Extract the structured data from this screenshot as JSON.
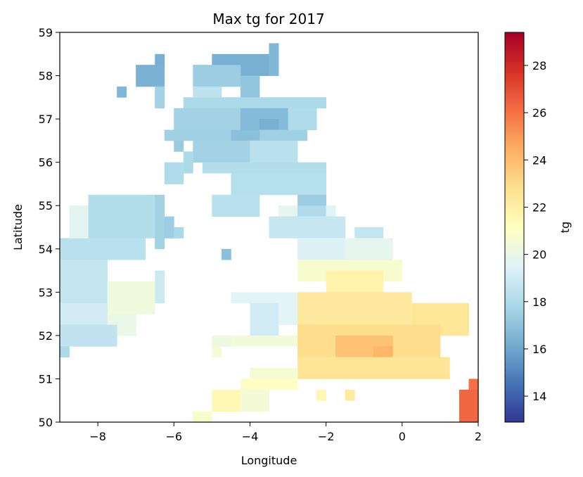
{
  "chart_data": {
    "type": "heatmap",
    "title": "Max tg for 2017",
    "xlabel": "Longitude",
    "ylabel": "Latitude",
    "xlim": [
      -9,
      2
    ],
    "ylim": [
      50,
      59
    ],
    "xticks": [
      "−8",
      "−6",
      "−4",
      "−2",
      "0",
      "2"
    ],
    "xtick_values": [
      -8,
      -6,
      -4,
      -2,
      0,
      2
    ],
    "yticks": [
      "50",
      "51",
      "52",
      "53",
      "54",
      "55",
      "56",
      "57",
      "58",
      "59"
    ],
    "ytick_values": [
      50,
      51,
      52,
      53,
      54,
      55,
      56,
      57,
      58,
      59
    ],
    "grid": false,
    "colorbar": {
      "label": "tg",
      "colormap": "RdYlBu_r",
      "vmin": 12.9,
      "vmax": 29.4,
      "ticks": [
        "14",
        "16",
        "18",
        "20",
        "22",
        "24",
        "26",
        "28"
      ],
      "tick_values": [
        14,
        16,
        18,
        20,
        22,
        24,
        26,
        28
      ]
    },
    "cell_size": 0.25,
    "regions": [
      {
        "x0": -5.0,
        "x1": -3.5,
        "y0": 58.0,
        "y1": 58.5,
        "value": 16.3
      },
      {
        "x0": -3.5,
        "x1": -3.25,
        "y0": 58.0,
        "y1": 58.75,
        "value": 16.6
      },
      {
        "x0": -7.0,
        "x1": -6.25,
        "y0": 57.75,
        "y1": 58.25,
        "value": 16.4
      },
      {
        "x0": -6.5,
        "x1": -6.25,
        "y0": 58.25,
        "y1": 58.5,
        "value": 16.3
      },
      {
        "x0": -5.5,
        "x1": -4.25,
        "y0": 57.75,
        "y1": 58.25,
        "value": 17.4
      },
      {
        "x0": -4.25,
        "x1": -3.75,
        "y0": 57.5,
        "y1": 58.0,
        "value": 17.1
      },
      {
        "x0": -7.5,
        "x1": -7.25,
        "y0": 57.5,
        "y1": 57.75,
        "value": 16.6
      },
      {
        "x0": -6.5,
        "x1": -6.25,
        "y0": 57.25,
        "y1": 57.75,
        "value": 17.6
      },
      {
        "x0": -5.75,
        "x1": -2.0,
        "y0": 57.25,
        "y1": 57.5,
        "value": 17.9
      },
      {
        "x0": -5.5,
        "x1": -4.75,
        "y0": 57.5,
        "y1": 57.75,
        "value": 18.4
      },
      {
        "x0": -6.0,
        "x1": -2.25,
        "y0": 56.75,
        "y1": 57.25,
        "value": 17.6
      },
      {
        "x0": -4.25,
        "x1": -3.0,
        "y0": 56.75,
        "y1": 57.25,
        "value": 16.7
      },
      {
        "x0": -3.75,
        "x1": -3.25,
        "y0": 56.75,
        "y1": 57.0,
        "value": 16.3
      },
      {
        "x0": -3.0,
        "x1": -2.25,
        "y0": 56.75,
        "y1": 57.25,
        "value": 18.0
      },
      {
        "x0": -6.25,
        "x1": -2.5,
        "y0": 56.5,
        "y1": 56.75,
        "value": 17.5
      },
      {
        "x0": -4.5,
        "x1": -3.75,
        "y0": 56.5,
        "y1": 56.75,
        "value": 16.9
      },
      {
        "x0": -5.5,
        "x1": -4.0,
        "y0": 56.0,
        "y1": 56.5,
        "value": 17.6
      },
      {
        "x0": -4.0,
        "x1": -2.75,
        "y0": 56.0,
        "y1": 56.5,
        "value": 18.3
      },
      {
        "x0": -6.0,
        "x1": -5.75,
        "y0": 56.25,
        "y1": 56.5,
        "value": 17.3
      },
      {
        "x0": -5.75,
        "x1": -5.5,
        "y0": 55.75,
        "y1": 56.25,
        "value": 17.9
      },
      {
        "x0": -6.25,
        "x1": -5.75,
        "y0": 55.5,
        "y1": 56.0,
        "value": 18.0
      },
      {
        "x0": -5.25,
        "x1": -2.0,
        "y0": 55.75,
        "y1": 56.0,
        "value": 18.1
      },
      {
        "x0": -4.5,
        "x1": -2.0,
        "y0": 55.25,
        "y1": 55.75,
        "value": 18.2
      },
      {
        "x0": -2.75,
        "x1": -2.0,
        "y0": 55.0,
        "y1": 55.25,
        "value": 17.4
      },
      {
        "x0": -5.0,
        "x1": -3.75,
        "y0": 54.75,
        "y1": 55.25,
        "value": 18.3
      },
      {
        "x0": -3.25,
        "x1": -2.75,
        "y0": 54.75,
        "y1": 55.0,
        "value": 19.8
      },
      {
        "x0": -2.75,
        "x1": -2.0,
        "y0": 54.75,
        "y1": 55.0,
        "value": 18.0
      },
      {
        "x0": -2.0,
        "x1": -1.75,
        "y0": 54.75,
        "y1": 55.0,
        "value": 19.5
      },
      {
        "x0": -3.5,
        "x1": -1.5,
        "y0": 54.25,
        "y1": 54.75,
        "value": 18.7
      },
      {
        "x0": -1.25,
        "x1": -0.5,
        "y0": 54.25,
        "y1": 54.5,
        "value": 18.6
      },
      {
        "x0": -4.75,
        "x1": -4.5,
        "y0": 53.75,
        "y1": 54.0,
        "value": 16.9
      },
      {
        "x0": -2.75,
        "x1": -1.5,
        "y0": 53.75,
        "y1": 54.25,
        "value": 19.4
      },
      {
        "x0": -1.5,
        "x1": -0.25,
        "y0": 53.75,
        "y1": 54.25,
        "value": 19.8
      },
      {
        "x0": -2.75,
        "x1": 0.0,
        "y0": 53.25,
        "y1": 53.75,
        "value": 20.7
      },
      {
        "x0": -2.0,
        "x1": -0.5,
        "y0": 53.0,
        "y1": 53.5,
        "value": 21.8
      },
      {
        "x0": -4.5,
        "x1": -2.75,
        "y0": 52.75,
        "y1": 53.0,
        "value": 19.6
      },
      {
        "x0": -4.0,
        "x1": -3.25,
        "y0": 52.0,
        "y1": 52.75,
        "value": 19.0
      },
      {
        "x0": -3.25,
        "x1": -2.75,
        "y0": 52.25,
        "y1": 52.75,
        "value": 19.6
      },
      {
        "x0": -2.75,
        "x1": 0.25,
        "y0": 52.25,
        "y1": 53.0,
        "value": 22.3
      },
      {
        "x0": 0.25,
        "x1": 1.75,
        "y0": 52.0,
        "y1": 52.75,
        "value": 22.5
      },
      {
        "x0": -4.5,
        "x1": -2.75,
        "y0": 51.75,
        "y1": 52.0,
        "value": 20.4
      },
      {
        "x0": -5.0,
        "x1": -4.5,
        "y0": 51.75,
        "y1": 52.0,
        "value": 20.2
      },
      {
        "x0": -5.0,
        "x1": -4.75,
        "y0": 51.5,
        "y1": 51.75,
        "value": 20.6
      },
      {
        "x0": -2.75,
        "x1": 1.0,
        "y0": 51.5,
        "y1": 52.25,
        "value": 22.9
      },
      {
        "x0": -1.75,
        "x1": -0.25,
        "y0": 51.5,
        "y1": 52.0,
        "value": 23.8
      },
      {
        "x0": -0.75,
        "x1": -0.25,
        "y0": 51.5,
        "y1": 51.75,
        "value": 24.2
      },
      {
        "x0": -2.75,
        "x1": 1.25,
        "y0": 51.0,
        "y1": 51.5,
        "value": 22.6
      },
      {
        "x0": -4.0,
        "x1": -2.75,
        "y0": 51.0,
        "y1": 51.25,
        "value": 20.6
      },
      {
        "x0": -4.25,
        "x1": -2.75,
        "y0": 50.75,
        "y1": 51.0,
        "value": 21.0
      },
      {
        "x0": -5.0,
        "x1": -4.25,
        "y0": 50.25,
        "y1": 50.75,
        "value": 21.5
      },
      {
        "x0": -4.25,
        "x1": -3.5,
        "y0": 50.25,
        "y1": 50.75,
        "value": 20.5
      },
      {
        "x0": -5.5,
        "x1": -5.0,
        "y0": 50.0,
        "y1": 50.25,
        "value": 20.8
      },
      {
        "x0": -2.25,
        "x1": -2.0,
        "y0": 50.5,
        "y1": 50.75,
        "value": 21.6
      },
      {
        "x0": -1.5,
        "x1": -1.25,
        "y0": 50.5,
        "y1": 50.75,
        "value": 22.2
      },
      {
        "x0": 1.5,
        "x1": 2.0,
        "y0": 50.0,
        "y1": 50.75,
        "value": 26.3
      },
      {
        "x0": 1.75,
        "x1": 2.0,
        "y0": 50.75,
        "y1": 51.0,
        "value": 26.0
      },
      {
        "x0": -9.0,
        "x1": -6.75,
        "y0": 53.75,
        "y1": 54.25,
        "value": 18.3
      },
      {
        "x0": -9.0,
        "x1": -7.75,
        "y0": 52.75,
        "y1": 53.75,
        "value": 18.6
      },
      {
        "x0": -7.75,
        "x1": -6.5,
        "y0": 52.5,
        "y1": 53.25,
        "value": 20.3
      },
      {
        "x0": -6.5,
        "x1": -6.25,
        "y0": 52.75,
        "y1": 53.5,
        "value": 18.9
      },
      {
        "x0": -9.0,
        "x1": -7.75,
        "y0": 52.25,
        "y1": 52.75,
        "value": 19.0
      },
      {
        "x0": -7.75,
        "x1": -7.0,
        "y0": 52.0,
        "y1": 52.5,
        "value": 20.0
      },
      {
        "x0": -9.0,
        "x1": -7.5,
        "y0": 51.75,
        "y1": 52.25,
        "value": 18.5
      },
      {
        "x0": -9.0,
        "x1": -8.75,
        "y0": 51.5,
        "y1": 51.75,
        "value": 17.9
      },
      {
        "x0": -8.75,
        "x1": -8.25,
        "y0": 54.25,
        "y1": 55.0,
        "value": 19.7
      },
      {
        "x0": -8.25,
        "x1": -6.5,
        "y0": 54.25,
        "y1": 55.25,
        "value": 18.1
      },
      {
        "x0": -6.5,
        "x1": -6.25,
        "y0": 54.0,
        "y1": 55.25,
        "value": 17.6
      },
      {
        "x0": -6.25,
        "x1": -6.0,
        "y0": 54.25,
        "y1": 54.75,
        "value": 17.4
      },
      {
        "x0": -6.0,
        "x1": -5.75,
        "y0": 54.25,
        "y1": 54.5,
        "value": 17.8
      }
    ]
  }
}
